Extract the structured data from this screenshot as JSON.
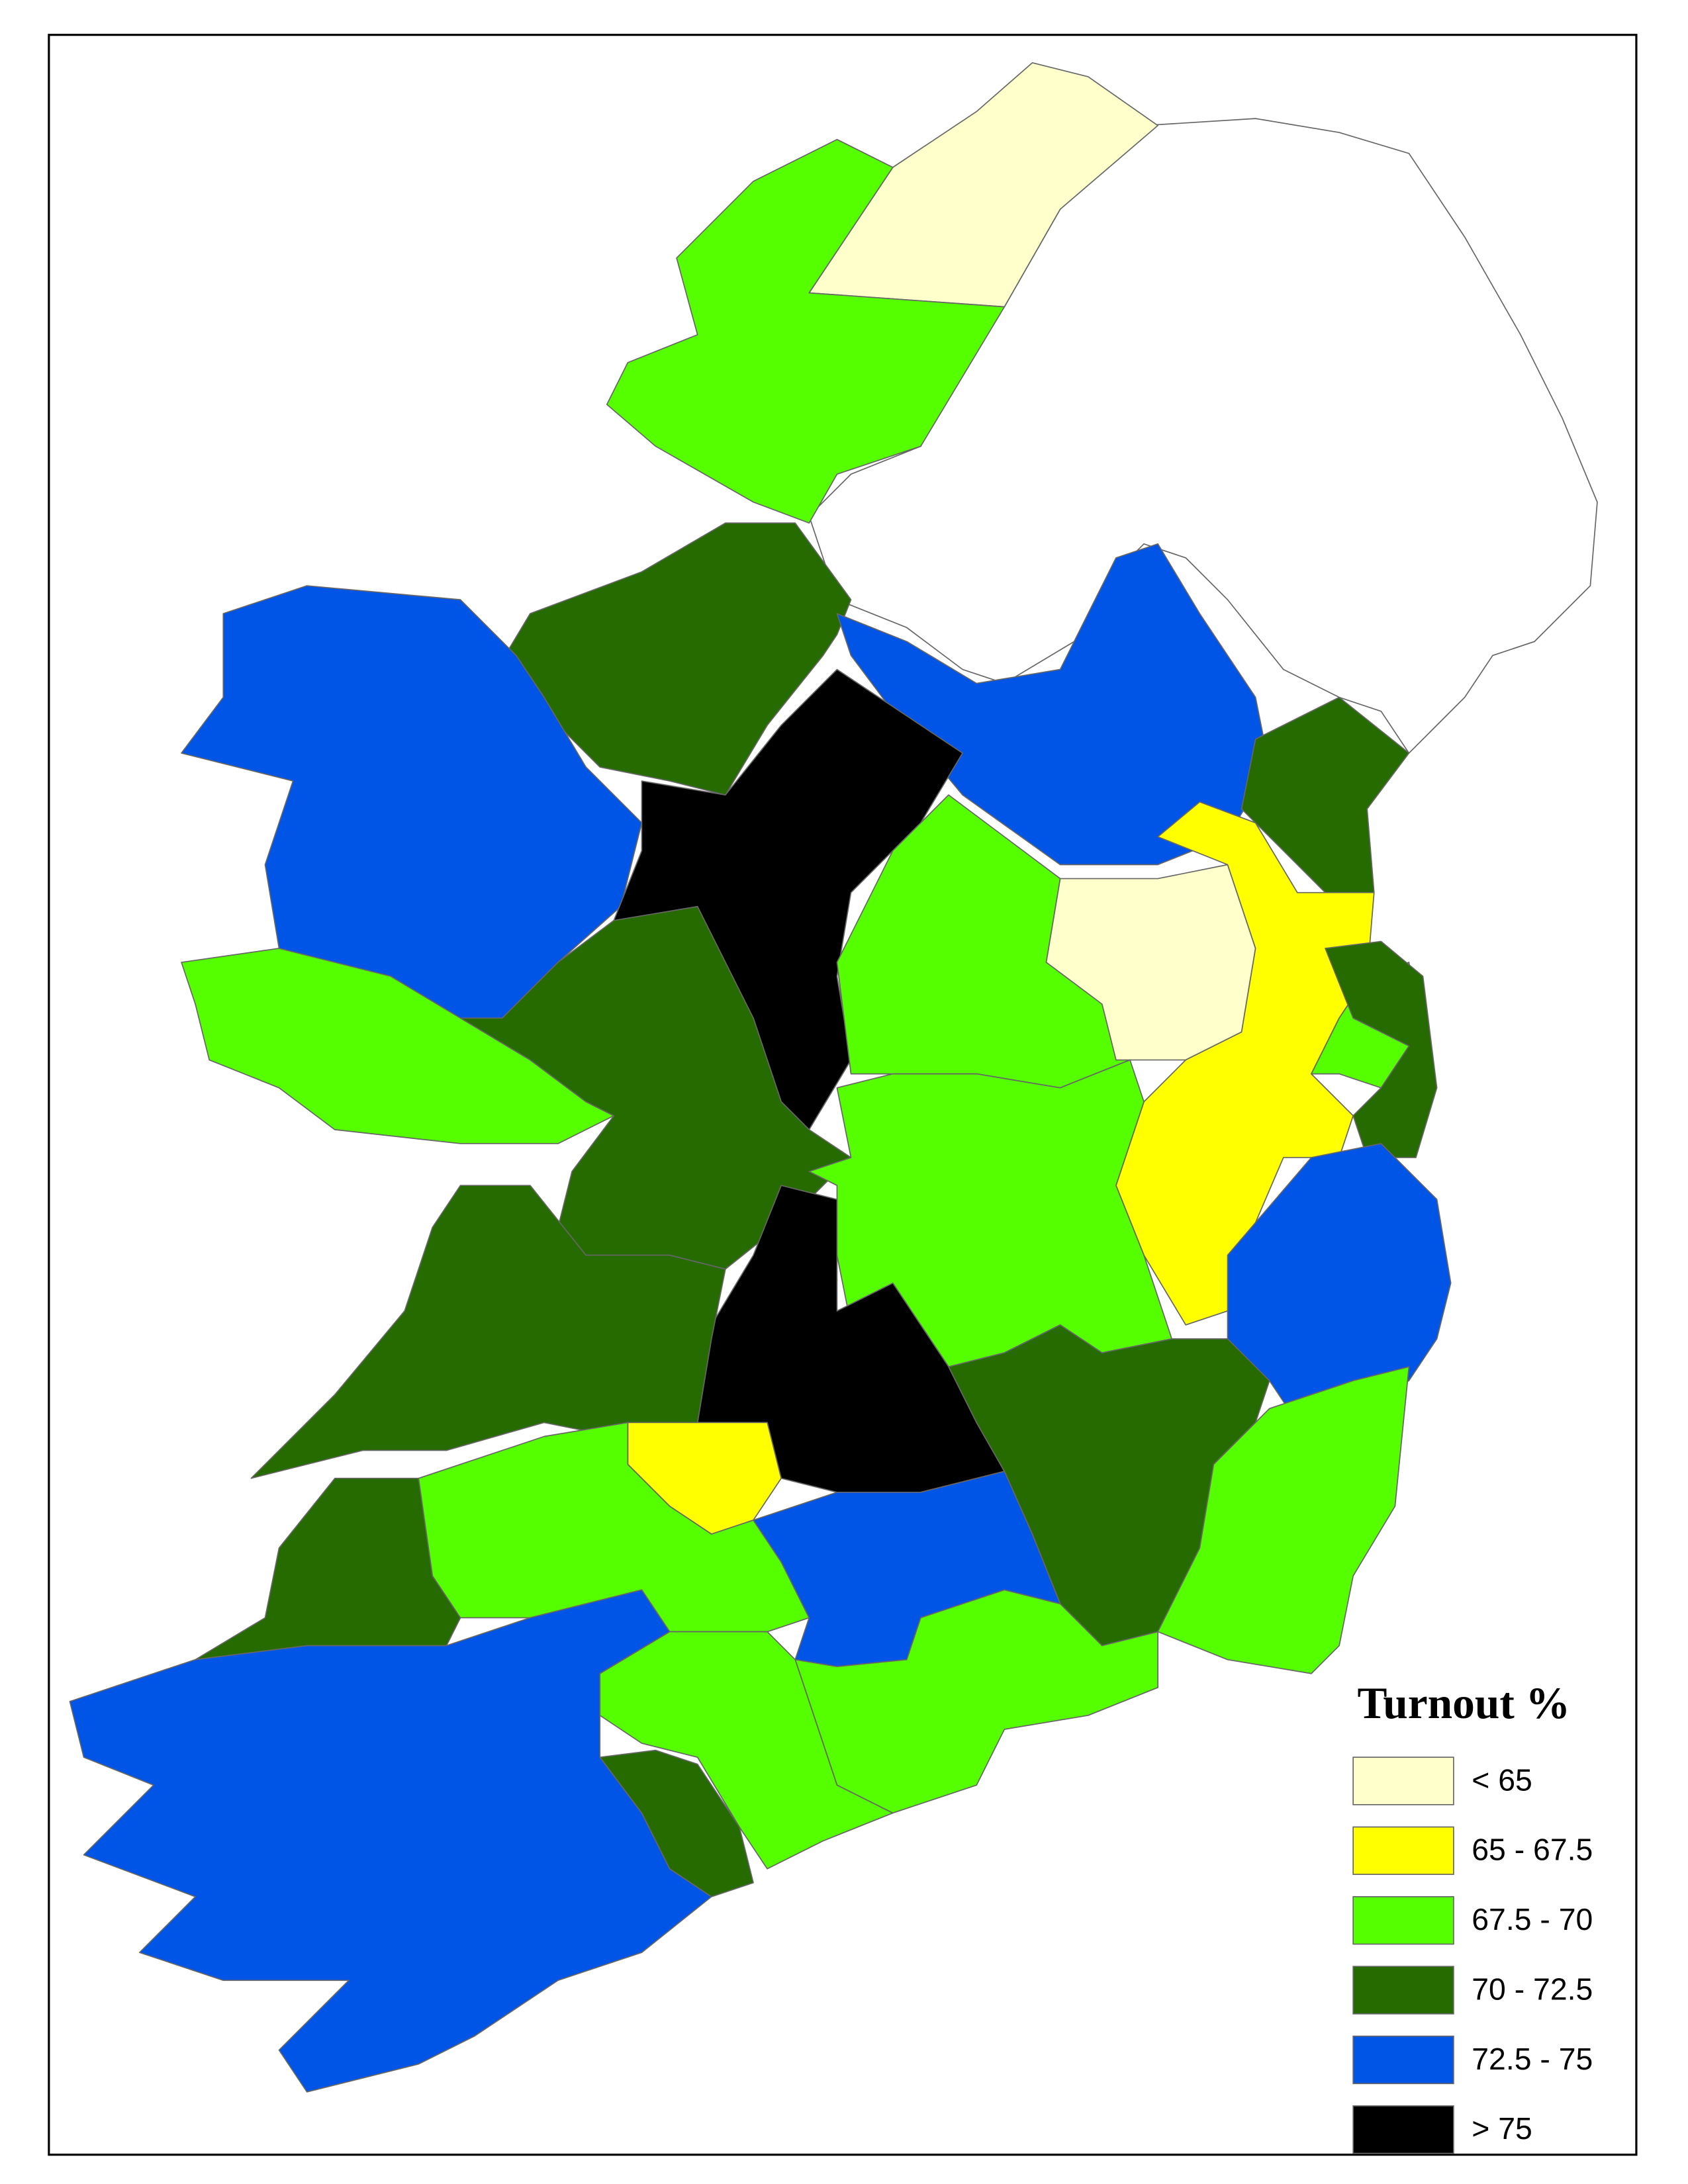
{
  "legend": {
    "title": "Turnout %",
    "items": [
      {
        "label": "< 65",
        "color": "#ffffcc"
      },
      {
        "label": "65 - 67.5",
        "color": "#ffff00"
      },
      {
        "label": "67.5 - 70",
        "color": "#55ff00"
      },
      {
        "label": "70 - 72.5",
        "color": "#266b00"
      },
      {
        "label": "72.5 - 75",
        "color": "#0055e6"
      },
      {
        "label": "> 75",
        "color": "#000000"
      }
    ]
  }
}
